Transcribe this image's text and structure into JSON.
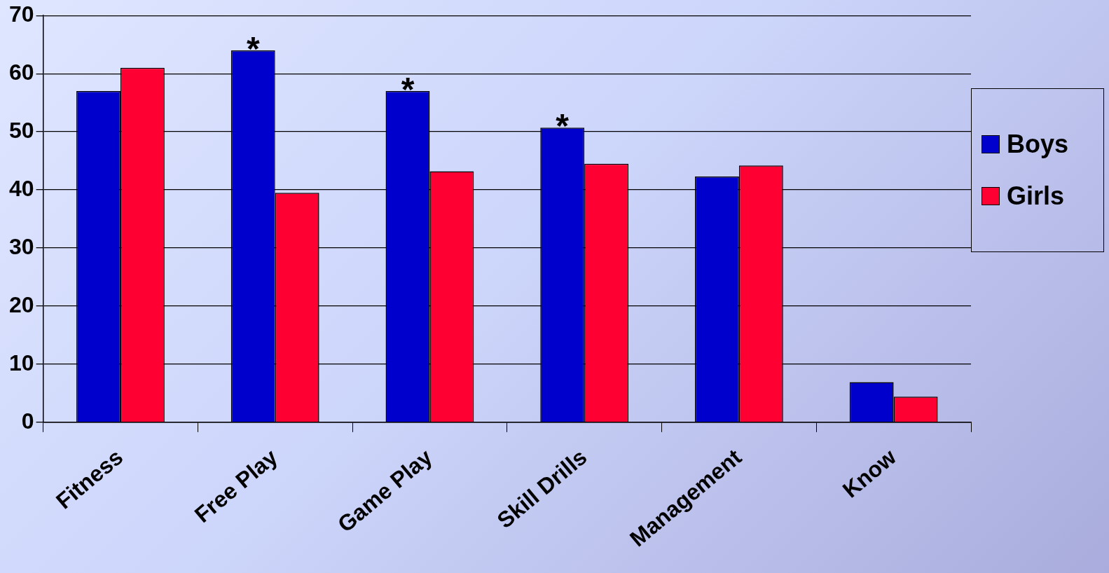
{
  "chart_data": {
    "type": "bar",
    "categories": [
      "Fitness",
      "Free Play",
      "Game Play",
      "Skill Drills",
      "Management",
      "Know"
    ],
    "series": [
      {
        "name": "Boys",
        "color": "#0000cc",
        "values": [
          57,
          64,
          57,
          50.7,
          42.3,
          6.9
        ]
      },
      {
        "name": "Girls",
        "color": "#ff0033",
        "values": [
          61,
          39.5,
          43.2,
          44.5,
          44.2,
          4.4
        ]
      }
    ],
    "ylim": [
      0,
      70
    ],
    "yticks": [
      0,
      10,
      20,
      30,
      40,
      50,
      60,
      70
    ],
    "grid": "y",
    "legend": "right",
    "annotations": [
      {
        "text": "*",
        "x": "Free Play",
        "y": 64
      },
      {
        "text": "*",
        "x": "Game Play",
        "y": 57
      },
      {
        "text": "*",
        "x": "Skill Drills",
        "y": 50.7
      }
    ]
  }
}
